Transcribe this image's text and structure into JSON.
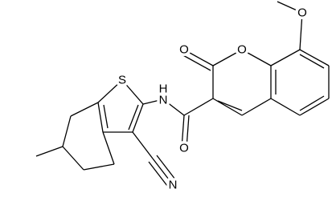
{
  "atoms": [
    "O",
    "O",
    "O",
    "O",
    "S",
    "H",
    "N",
    "N"
  ]
}
